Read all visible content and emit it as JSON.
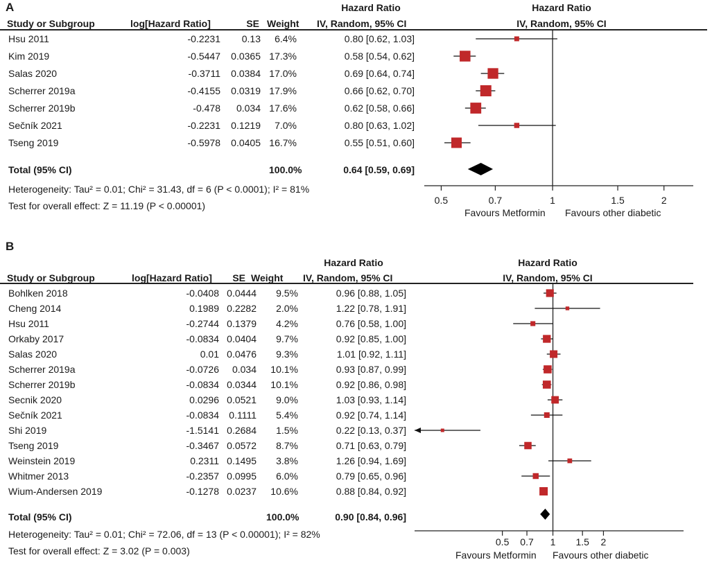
{
  "chart_data": [
    {
      "type": "forest",
      "panel": "A",
      "title": "",
      "columns": [
        "Study or Subgroup",
        "log[Hazard Ratio]",
        "SE",
        "Weight",
        "Hazard Ratio",
        "IV, Random, 95% CI"
      ],
      "plot_header": [
        "Hazard Ratio",
        "IV, Random, 95% CI"
      ],
      "rows": [
        {
          "study": "Hsu 2011",
          "log_hr": "-0.2231",
          "se": "0.13",
          "weight": "6.4%",
          "ci_text": "0.80 [0.62, 1.03]",
          "hr": 0.8,
          "lo": 0.62,
          "hi": 1.03
        },
        {
          "study": "Kim 2019",
          "log_hr": "-0.5447",
          "se": "0.0365",
          "weight": "17.3%",
          "ci_text": "0.58 [0.54, 0.62]",
          "hr": 0.58,
          "lo": 0.54,
          "hi": 0.62
        },
        {
          "study": "Salas 2020",
          "log_hr": "-0.3711",
          "se": "0.0384",
          "weight": "17.0%",
          "ci_text": "0.69 [0.64, 0.74]",
          "hr": 0.69,
          "lo": 0.64,
          "hi": 0.74
        },
        {
          "study": "Scherrer 2019a",
          "log_hr": "-0.4155",
          "se": "0.0319",
          "weight": "17.9%",
          "ci_text": "0.66 [0.62, 0.70]",
          "hr": 0.66,
          "lo": 0.62,
          "hi": 0.7
        },
        {
          "study": "Scherrer 2019b",
          "log_hr": "-0.478",
          "se": "0.034",
          "weight": "17.6%",
          "ci_text": "0.62 [0.58, 0.66]",
          "hr": 0.62,
          "lo": 0.58,
          "hi": 0.66
        },
        {
          "study": "Sečník 2021",
          "log_hr": "-0.2231",
          "se": "0.1219",
          "weight": "7.0%",
          "ci_text": "0.80 [0.63, 1.02]",
          "hr": 0.8,
          "lo": 0.63,
          "hi": 1.02
        },
        {
          "study": "Tseng 2019",
          "log_hr": "-0.5978",
          "se": "0.0405",
          "weight": "16.7%",
          "ci_text": "0.55 [0.51, 0.60]",
          "hr": 0.55,
          "lo": 0.51,
          "hi": 0.6
        }
      ],
      "total": {
        "label": "Total (95% CI)",
        "weight": "100.0%",
        "ci_text": "0.64 [0.59, 0.69]",
        "hr": 0.64,
        "lo": 0.59,
        "hi": 0.69
      },
      "heterogeneity": "Heterogeneity: Tau² = 0.01; Chi² = 31.43, df = 6 (P < 0.0001); I² = 81%",
      "overall_effect": "Test for overall effect: Z = 11.19 (P < 0.00001)",
      "xscale": "log",
      "xlim": [
        0.45,
        2.4
      ],
      "ticks": [
        {
          "v": 0.5,
          "label": "0.5"
        },
        {
          "v": 0.7,
          "label": "0.7"
        },
        {
          "v": 1,
          "label": "1"
        },
        {
          "v": 1.5,
          "label": "1.5"
        },
        {
          "v": 2,
          "label": "2"
        }
      ],
      "favours_left": "Favours Metformin",
      "favours_right": "Favours other diabetic",
      "marker_color": "#c0282a"
    },
    {
      "type": "forest",
      "panel": "B",
      "title": "",
      "columns": [
        "Study or Subgroup",
        "log[Hazard Ratio]",
        "SE",
        "Weight",
        "Hazard Ratio",
        "IV, Random, 95% CI"
      ],
      "plot_header": [
        "Hazard Ratio",
        "IV, Random, 95% CI"
      ],
      "rows": [
        {
          "study": "Bohlken 2018",
          "log_hr": "-0.0408",
          "se": "0.0444",
          "weight": "9.5%",
          "ci_text": "0.96 [0.88, 1.05]",
          "hr": 0.96,
          "lo": 0.88,
          "hi": 1.05
        },
        {
          "study": "Cheng 2014",
          "log_hr": "0.1989",
          "se": "0.2282",
          "weight": "2.0%",
          "ci_text": "1.22 [0.78, 1.91]",
          "hr": 1.22,
          "lo": 0.78,
          "hi": 1.91
        },
        {
          "study": "Hsu 2011",
          "log_hr": "-0.2744",
          "se": "0.1379",
          "weight": "4.2%",
          "ci_text": "0.76 [0.58, 1.00]",
          "hr": 0.76,
          "lo": 0.58,
          "hi": 1.0
        },
        {
          "study": "Orkaby 2017",
          "log_hr": "-0.0834",
          "se": "0.0404",
          "weight": "9.7%",
          "ci_text": "0.92 [0.85, 1.00]",
          "hr": 0.92,
          "lo": 0.85,
          "hi": 1.0
        },
        {
          "study": "Salas 2020",
          "log_hr": "0.01",
          "se": "0.0476",
          "weight": "9.3%",
          "ci_text": "1.01 [0.92, 1.11]",
          "hr": 1.01,
          "lo": 0.92,
          "hi": 1.11
        },
        {
          "study": "Scherrer 2019a",
          "log_hr": "-0.0726",
          "se": "0.034",
          "weight": "10.1%",
          "ci_text": "0.93 [0.87, 0.99]",
          "hr": 0.93,
          "lo": 0.87,
          "hi": 0.99
        },
        {
          "study": "Scherrer 2019b",
          "log_hr": "-0.0834",
          "se": "0.0344",
          "weight": "10.1%",
          "ci_text": "0.92 [0.86, 0.98]",
          "hr": 0.92,
          "lo": 0.86,
          "hi": 0.98
        },
        {
          "study": "Secnik 2020",
          "log_hr": "0.0296",
          "se": "0.0521",
          "weight": "9.0%",
          "ci_text": "1.03 [0.93, 1.14]",
          "hr": 1.03,
          "lo": 0.93,
          "hi": 1.14
        },
        {
          "study": "Sečník 2021",
          "log_hr": "-0.0834",
          "se": "0.1111",
          "weight": "5.4%",
          "ci_text": "0.92 [0.74, 1.14]",
          "hr": 0.92,
          "lo": 0.74,
          "hi": 1.14
        },
        {
          "study": "Shi 2019",
          "log_hr": "-1.5141",
          "se": "0.2684",
          "weight": "1.5%",
          "ci_text": "0.22 [0.13, 0.37]",
          "hr": 0.22,
          "lo": 0.13,
          "hi": 0.37
        },
        {
          "study": "Tseng 2019",
          "log_hr": "-0.3467",
          "se": "0.0572",
          "weight": "8.7%",
          "ci_text": "0.71 [0.63, 0.79]",
          "hr": 0.71,
          "lo": 0.63,
          "hi": 0.79
        },
        {
          "study": "Weinstein 2019",
          "log_hr": "0.2311",
          "se": "0.1495",
          "weight": "3.8%",
          "ci_text": "1.26 [0.94, 1.69]",
          "hr": 1.26,
          "lo": 0.94,
          "hi": 1.69
        },
        {
          "study": "Whitmer 2013",
          "log_hr": "-0.2357",
          "se": "0.0995",
          "weight": "6.0%",
          "ci_text": "0.79 [0.65, 0.96]",
          "hr": 0.79,
          "lo": 0.65,
          "hi": 0.96
        },
        {
          "study": "Wium-Andersen 2019",
          "log_hr": "-0.1278",
          "se": "0.0237",
          "weight": "10.6%",
          "ci_text": "0.88 [0.84, 0.92]",
          "hr": 0.88,
          "lo": 0.84,
          "hi": 0.92
        }
      ],
      "total": {
        "label": "Total (95% CI)",
        "weight": "100.0%",
        "ci_text": "0.90 [0.84, 0.96]",
        "hr": 0.9,
        "lo": 0.84,
        "hi": 0.96
      },
      "heterogeneity": "Heterogeneity: Tau² = 0.01; Chi² = 72.06, df = 13 (P < 0.00001); I² = 82%",
      "overall_effect": "Test for overall effect: Z = 3.02 (P = 0.003)",
      "xscale": "log",
      "xlim": [
        0.15,
        6.0
      ],
      "ticks": [
        {
          "v": 0.5,
          "label": "0.5"
        },
        {
          "v": 0.7,
          "label": "0.7"
        },
        {
          "v": 1,
          "label": "1"
        },
        {
          "v": 1.5,
          "label": "1.5"
        },
        {
          "v": 2,
          "label": "2"
        }
      ],
      "favours_left": "Favours Metformin",
      "favours_right": "Favours other diabetic",
      "marker_color": "#c0282a"
    }
  ]
}
